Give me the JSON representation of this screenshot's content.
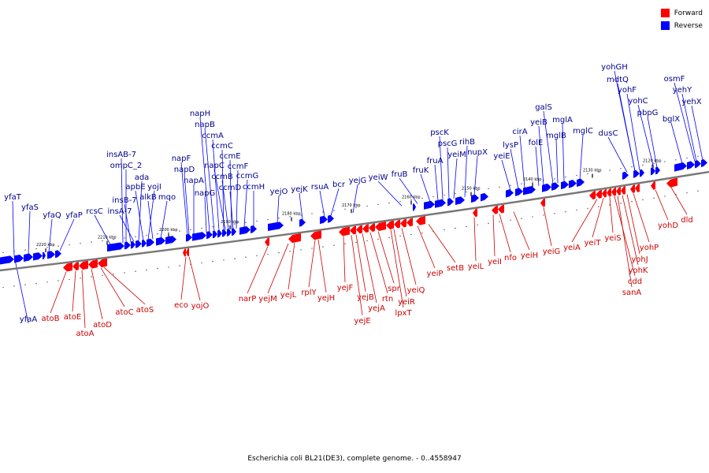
{
  "legend": {
    "forward_label": "Forward",
    "reverse_label": "Reverse",
    "forward_color": "#ff0000",
    "reverse_color": "#0000ff"
  },
  "caption": "Escherichia coli BL21(DE3), complete genome. - 0..4558947",
  "chart_data": {
    "type": "genome-map",
    "position_markers": [
      "2220 kbp",
      "2210 kbp",
      "2200 kbp",
      "2190 kbp",
      "2180 kbp",
      "2170 kbp",
      "2160 kbp",
      "2150 kbp",
      "2140 kbp",
      "2130 kbp",
      "2120 kbp"
    ],
    "reverse_genes": [
      "yfaT",
      "yfaS",
      "yfaQ",
      "yfaP",
      "rcsC",
      "insAB-7",
      "ompC_2",
      "insB-7",
      "insA-7",
      "ada",
      "apbE",
      "yojI",
      "alkB",
      "mqo",
      "napF",
      "napD",
      "napA",
      "napG",
      "napH",
      "napB",
      "ccmA",
      "ccmC",
      "napC",
      "ccmB",
      "ccmE",
      "ccmD",
      "ccmF",
      "ccmG",
      "ccmH",
      "yejO",
      "yejK",
      "rsuA",
      "bcr",
      "yejG",
      "yeiW",
      "fruB",
      "fruK",
      "fruA",
      "pscK",
      "pscG",
      "yeiM",
      "rihB",
      "nupX",
      "yeiE",
      "lysP",
      "cirA",
      "folE",
      "yeiB",
      "galS",
      "mglB",
      "mglA",
      "mglC",
      "dusC",
      "yohGH",
      "mdtQ",
      "yohF",
      "yohC",
      "pbpG",
      "bglX",
      "osmF",
      "yehY",
      "yehX",
      "yfaA"
    ],
    "forward_genes": [
      "atoB",
      "atoE",
      "atoA",
      "atoD",
      "atoC",
      "atoS",
      "eco",
      "yojO",
      "narP",
      "yejM",
      "yejL",
      "rplY",
      "yejH",
      "yejF",
      "yejE",
      "yejB",
      "yejA",
      "rtn",
      "spr",
      "lpxT",
      "yeiR",
      "yeiQ",
      "yeiP",
      "setB",
      "yeiL",
      "yeiI",
      "nfo",
      "yeiH",
      "yeiG",
      "yeiA",
      "yeiT",
      "yeiS",
      "cdd",
      "sanA",
      "yohK",
      "yohJ",
      "yohP",
      "yohD",
      "dld"
    ]
  }
}
